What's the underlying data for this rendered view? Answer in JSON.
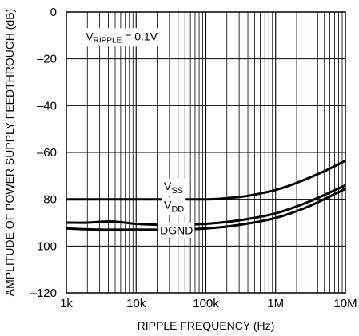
{
  "chart_data": {
    "type": "line",
    "title": "",
    "xlabel": "RIPPLE FREQUENCY (Hz)",
    "ylabel": "AMPLITUDE OF POWER SUPPLY FEEDTHROUGH (dB)",
    "xscale": "log",
    "xlim": [
      1000,
      10000000
    ],
    "ylim": [
      -120,
      0
    ],
    "grid": true,
    "x_ticks": [
      {
        "value": 1000,
        "label": "1k"
      },
      {
        "value": 10000,
        "label": "10k"
      },
      {
        "value": 100000,
        "label": "100k"
      },
      {
        "value": 1000000,
        "label": "1M"
      },
      {
        "value": 10000000,
        "label": "10M"
      }
    ],
    "y_ticks": [
      {
        "value": 0,
        "label": "0"
      },
      {
        "value": -20,
        "label": "–20"
      },
      {
        "value": -40,
        "label": "–40"
      },
      {
        "value": -60,
        "label": "–60"
      },
      {
        "value": -80,
        "label": "–80"
      },
      {
        "value": -100,
        "label": "–100"
      },
      {
        "value": -120,
        "label": "–120"
      }
    ],
    "annotation": {
      "main": "V",
      "sub": "RIPPLE",
      "rest": " = 0.1V"
    },
    "series": [
      {
        "name": "VSS",
        "label_main": "V",
        "label_sub": "SS",
        "label_x": 25000,
        "label_y": -76,
        "points": [
          [
            1000,
            -80
          ],
          [
            10000,
            -80
          ],
          [
            100000,
            -80
          ],
          [
            200000,
            -79.5
          ],
          [
            400000,
            -78.5
          ],
          [
            1000000,
            -76
          ],
          [
            2000000,
            -73
          ],
          [
            5000000,
            -68
          ],
          [
            10000000,
            -63.5
          ]
        ]
      },
      {
        "name": "VDD",
        "label_main": "V",
        "label_sub": "DD",
        "label_x": 25000,
        "label_y": -84,
        "points": [
          [
            1000,
            -90
          ],
          [
            2000,
            -90
          ],
          [
            4000,
            -89.5
          ],
          [
            7000,
            -90
          ],
          [
            10000,
            -90.5
          ],
          [
            30000,
            -91
          ],
          [
            100000,
            -90.5
          ],
          [
            300000,
            -89
          ],
          [
            1000000,
            -86
          ],
          [
            3000000,
            -81
          ],
          [
            10000000,
            -74
          ]
        ]
      },
      {
        "name": "DGND",
        "label_main": "DGND",
        "label_sub": "",
        "label_x": 22000,
        "label_y": -95,
        "points": [
          [
            1000,
            -92.5
          ],
          [
            3000,
            -93
          ],
          [
            10000,
            -93
          ],
          [
            30000,
            -93
          ],
          [
            100000,
            -92.5
          ],
          [
            300000,
            -91
          ],
          [
            1000000,
            -88
          ],
          [
            3000000,
            -83
          ],
          [
            10000000,
            -75.5
          ]
        ]
      }
    ]
  }
}
